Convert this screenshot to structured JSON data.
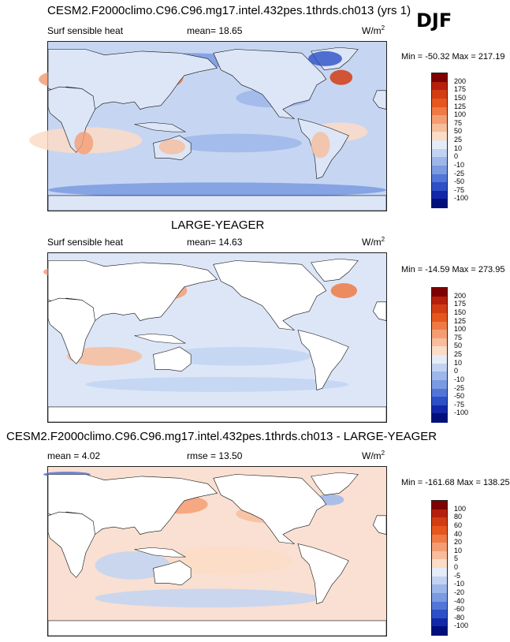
{
  "header": {
    "title": "CESM2.F2000climo.C96.C96.mg17.intel.432pes.1thrds.ch013 (yrs 1)",
    "season": "DJF"
  },
  "panels": [
    {
      "title": "",
      "variable": "Surf sensible heat",
      "stat": "mean=  18.65",
      "units": "W/m",
      "units_sup": "2",
      "minmax": "Min = -50.32 Max = 217.19",
      "mode": "full",
      "levels": [
        "200",
        "175",
        "150",
        "125",
        "100",
        "75",
        "50",
        "25",
        "10",
        "0",
        "-10",
        "-25",
        "-50",
        "-75",
        "-100"
      ],
      "colors": [
        "#7f0000",
        "#b5200c",
        "#d23d13",
        "#e6571d",
        "#ef7a45",
        "#f49d73",
        "#f7bd9c",
        "#fbdcc7",
        "#e4ecf8",
        "#c2d3f2",
        "#9db7ea",
        "#7a9ae2",
        "#5276d8",
        "#2d50c6",
        "#1129a8",
        "#000f7a"
      ]
    },
    {
      "title": "LARGE-YEAGER",
      "variable": "Surf sensible heat",
      "stat": "mean=  14.63",
      "units": "W/m",
      "units_sup": "2",
      "minmax": "Min = -14.59 Max = 273.95",
      "mode": "ocean",
      "levels": [
        "200",
        "175",
        "150",
        "125",
        "100",
        "75",
        "50",
        "25",
        "10",
        "0",
        "-10",
        "-25",
        "-50",
        "-75",
        "-100"
      ],
      "colors": [
        "#7f0000",
        "#b5200c",
        "#d23d13",
        "#e6571d",
        "#ef7a45",
        "#f49d73",
        "#f7bd9c",
        "#fbdcc7",
        "#e4ecf8",
        "#c2d3f2",
        "#9db7ea",
        "#7a9ae2",
        "#5276d8",
        "#2d50c6",
        "#1129a8",
        "#000f7a"
      ]
    },
    {
      "title": "CESM2.F2000climo.C96.C96.mg17.intel.432pes.1thrds.ch013 - LARGE-YEAGER",
      "variable": "mean =  4.02",
      "stat": "rmse =  13.50",
      "units": "W/m",
      "units_sup": "2",
      "minmax": "Min = -161.68 Max = 138.25",
      "mode": "diff",
      "levels": [
        "100",
        "80",
        "60",
        "40",
        "20",
        "10",
        "5",
        "0",
        "-5",
        "-10",
        "-20",
        "-40",
        "-60",
        "-80",
        "-100"
      ],
      "colors": [
        "#7f0000",
        "#b5200c",
        "#d23d13",
        "#e6571d",
        "#ef7a45",
        "#f49d73",
        "#f7bd9c",
        "#fbdcc7",
        "#e4ecf8",
        "#c2d3f2",
        "#9db7ea",
        "#7a9ae2",
        "#5276d8",
        "#2d50c6",
        "#1129a8",
        "#000f7a"
      ]
    }
  ]
}
